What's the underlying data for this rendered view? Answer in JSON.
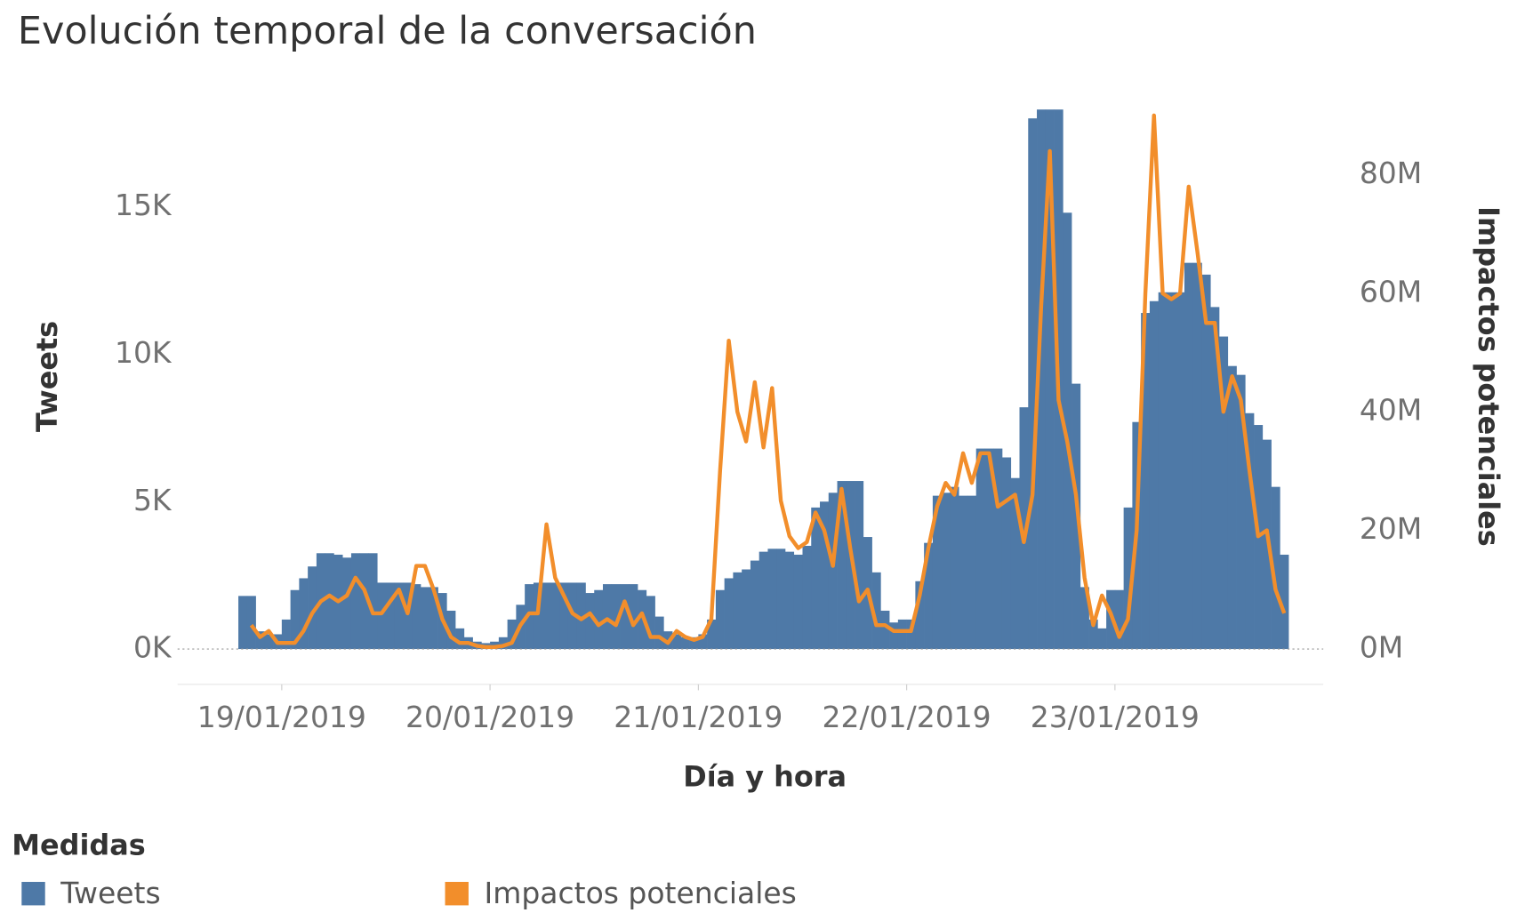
{
  "chart_data": {
    "type": "bar-line",
    "title": "Evolución temporal de la conversación",
    "x_label": "Día y hora",
    "y_label": "Tweets",
    "y2_label": "Impactos potenciales",
    "legend_title": "Medidas",
    "xlim": [
      -12,
      120
    ],
    "xticks": [
      {
        "value": 0,
        "label": "19/01/2019"
      },
      {
        "value": 24,
        "label": "20/01/2019"
      },
      {
        "value": 48,
        "label": "21/01/2019"
      },
      {
        "value": 72,
        "label": "22/01/2019"
      },
      {
        "value": 96,
        "label": "23/01/2019"
      }
    ],
    "ylim": [
      -1200,
      18500
    ],
    "yticks": [
      {
        "value": 0,
        "label": "0K"
      },
      {
        "value": 5000,
        "label": "5K"
      },
      {
        "value": 10000,
        "label": "10K"
      },
      {
        "value": 15000,
        "label": "15K"
      }
    ],
    "y2lim": [
      -6000000,
      92000000
    ],
    "y2ticks": [
      {
        "value": 0,
        "label": "0M"
      },
      {
        "value": 20000000,
        "label": "20M"
      },
      {
        "value": 40000000,
        "label": "40M"
      },
      {
        "value": 60000000,
        "label": "60M"
      },
      {
        "value": 80000000,
        "label": "80M"
      }
    ],
    "x": [
      -5,
      -4,
      -3,
      -2,
      -1,
      0,
      1,
      2,
      3,
      4,
      5,
      6,
      7,
      8,
      9,
      10,
      11,
      12,
      13,
      14,
      15,
      16,
      17,
      18,
      19,
      20,
      21,
      22,
      23,
      24,
      25,
      26,
      27,
      28,
      29,
      30,
      31,
      32,
      33,
      34,
      35,
      36,
      37,
      38,
      39,
      40,
      41,
      42,
      43,
      44,
      45,
      46,
      47,
      48,
      49,
      50,
      51,
      52,
      53,
      54,
      55,
      56,
      57,
      58,
      59,
      60,
      61,
      62,
      63,
      64,
      65,
      66,
      67,
      68,
      69,
      70,
      71,
      72,
      73,
      74,
      75,
      76,
      77,
      78,
      79,
      80,
      81,
      82,
      83,
      84,
      85,
      86,
      87,
      88,
      89,
      90,
      91,
      92,
      93,
      94,
      95,
      96,
      97,
      98,
      99,
      100,
      101,
      102,
      103,
      104,
      105,
      106,
      107,
      108,
      109,
      110,
      111,
      112,
      113,
      114,
      115
    ],
    "series": [
      {
        "name": "Tweets",
        "type": "bar",
        "color": "#4e79a7",
        "values": [
          1800,
          1800,
          600,
          500,
          500,
          1000,
          2000,
          2400,
          2800,
          3250,
          3250,
          3200,
          3100,
          3250,
          3250,
          3250,
          2250,
          2250,
          2250,
          2250,
          2200,
          2100,
          2100,
          1900,
          1300,
          700,
          400,
          250,
          200,
          250,
          400,
          1000,
          1500,
          2200,
          2250,
          2250,
          2250,
          2250,
          2250,
          2250,
          1900,
          2000,
          2200,
          2200,
          2200,
          2200,
          2000,
          1800,
          1100,
          600,
          500,
          400,
          400,
          500,
          1000,
          2000,
          2400,
          2600,
          2700,
          3000,
          3300,
          3400,
          3400,
          3300,
          3200,
          3500,
          4800,
          5000,
          5300,
          5700,
          5700,
          5700,
          3800,
          2600,
          1300,
          900,
          1000,
          1000,
          2300,
          3600,
          5200,
          5300,
          5500,
          5200,
          5200,
          6800,
          6800,
          6800,
          6500,
          5800,
          8200,
          18000,
          18300,
          18300,
          18300,
          14800,
          9000,
          2100,
          1000,
          700,
          2000,
          2000,
          4800,
          7700,
          11400,
          11800,
          12100,
          12100,
          12100,
          13100,
          13100,
          12700,
          11600,
          10600,
          9600,
          9300,
          8000,
          7600,
          7100,
          5500,
          3200
        ]
      },
      {
        "name": "Impactos potenciales",
        "type": "line",
        "axis": "y2",
        "color": "#f28e2b",
        "values": [
          null,
          4000000,
          2000000,
          3000000,
          1000000,
          1000000,
          1000000,
          3000000,
          6000000,
          8000000,
          9000000,
          8000000,
          9000000,
          12000000,
          10000000,
          6000000,
          6000000,
          8000000,
          10000000,
          6000000,
          14000000,
          14000000,
          10000000,
          5000000,
          2000000,
          1000000,
          1000000,
          500000,
          300000,
          300000,
          500000,
          1000000,
          4000000,
          6000000,
          6000000,
          21000000,
          12000000,
          9000000,
          6000000,
          5000000,
          6000000,
          4000000,
          5000000,
          4000000,
          8000000,
          4000000,
          6000000,
          2000000,
          2000000,
          1000000,
          3000000,
          2000000,
          1500000,
          2000000,
          5000000,
          30000000,
          52000000,
          40000000,
          35000000,
          45000000,
          34000000,
          44000000,
          25000000,
          19000000,
          17000000,
          18000000,
          23000000,
          20000000,
          14000000,
          27000000,
          17000000,
          8000000,
          10000000,
          4000000,
          4000000,
          3000000,
          3000000,
          3000000,
          9000000,
          17000000,
          24000000,
          28000000,
          26000000,
          33000000,
          28000000,
          33000000,
          33000000,
          24000000,
          25000000,
          26000000,
          18000000,
          26000000,
          58000000,
          84000000,
          42000000,
          35000000,
          26000000,
          12000000,
          4000000,
          9000000,
          6000000,
          2000000,
          5000000,
          20000000,
          60000000,
          90000000,
          60000000,
          59000000,
          60000000,
          78000000,
          67000000,
          55000000,
          55000000,
          40000000,
          46000000,
          42000000,
          30000000,
          19000000,
          20000000,
          10000000,
          6000000
        ]
      }
    ]
  }
}
